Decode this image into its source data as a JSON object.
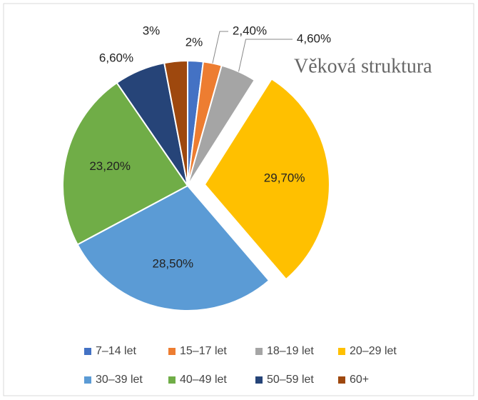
{
  "chart_data": {
    "type": "pie",
    "title": "Věková struktura",
    "categories": [
      "7–14 let",
      "15–17 let",
      "18–19 let",
      "20–29 let",
      "30–39 let",
      "40–49 let",
      "50–59 let",
      "60+"
    ],
    "values": [
      2,
      2.4,
      4.6,
      29.7,
      28.5,
      23.2,
      6.6,
      3
    ],
    "value_labels": [
      "2%",
      "2,40%",
      "4,60%",
      "29,70%",
      "28,50%",
      "23,20%",
      "6,60%",
      "3%"
    ],
    "colors": [
      "#4472c4",
      "#ed7d31",
      "#a5a5a5",
      "#ffc000",
      "#5b9bd5",
      "#70ad47",
      "#264478",
      "#9e480e"
    ],
    "exploded": [
      3
    ],
    "legend": "bottom"
  }
}
